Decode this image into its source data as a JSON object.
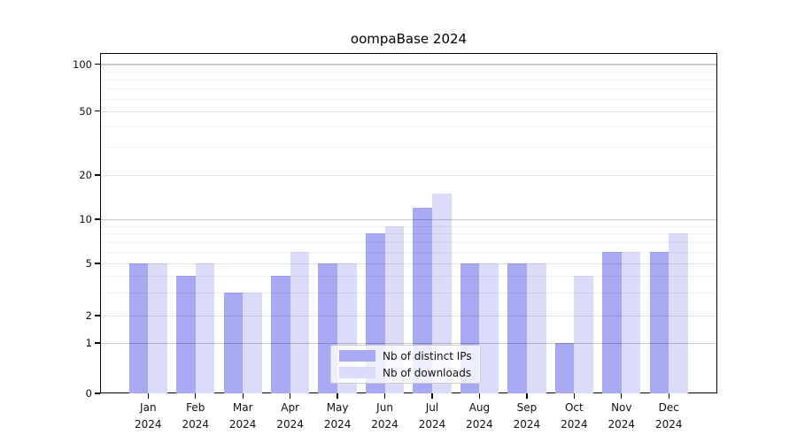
{
  "title": "oompaBase 2024",
  "chart_data": {
    "type": "bar",
    "title": "oompaBase 2024",
    "categories": [
      "Jan 2024",
      "Feb 2024",
      "Mar 2024",
      "Apr 2024",
      "May 2024",
      "Jun 2024",
      "Jul 2024",
      "Aug 2024",
      "Sep 2024",
      "Oct 2024",
      "Nov 2024",
      "Dec 2024"
    ],
    "series": [
      {
        "name": "Nb of distinct IPs",
        "color": "#a7a9f3",
        "values": [
          5,
          4,
          3,
          4,
          5,
          8,
          12,
          5,
          5,
          1,
          6,
          6
        ]
      },
      {
        "name": "Nb of downloads",
        "color": "#dbdcfa",
        "values": [
          5,
          5,
          3,
          6,
          5,
          9,
          15,
          5,
          5,
          4,
          6,
          8
        ]
      }
    ],
    "xlabel": "",
    "ylabel": "",
    "yscale": "symlog",
    "ylim": [
      0,
      100
    ],
    "yticks": [
      0,
      1,
      2,
      5,
      10,
      20,
      50,
      100
    ],
    "ytick_labels": [
      "0",
      "1",
      "2",
      "5",
      "10",
      "20",
      "50",
      "100"
    ],
    "minor_yticks": [
      3,
      4,
      6,
      7,
      8,
      9,
      30,
      40,
      60,
      70,
      80,
      90
    ],
    "grid": true,
    "legend_position": "inside lower center"
  },
  "colors": {
    "bar_ips": "#a7a9f3",
    "bar_downloads": "#dbdcfa",
    "grid_decade": "rgba(0,0,0,0.21)",
    "grid_major": "rgba(0,0,0,0.11)",
    "grid_minor": "rgba(0,0,0,0.055)",
    "spine": "#000000",
    "legend_border": "#cccccc"
  }
}
